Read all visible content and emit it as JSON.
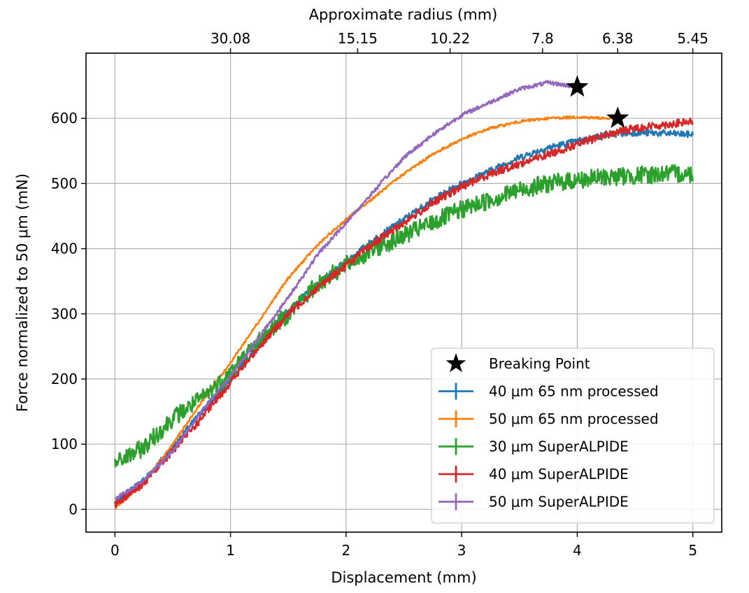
{
  "chart_data": {
    "type": "line",
    "xlabel": "Displacement (mm)",
    "ylabel": "Force normalized to 50 μm (mN)",
    "top_xlabel": "Approximate radius (mm)",
    "xlim": [
      -0.25,
      5.25
    ],
    "ylim": [
      -35,
      700
    ],
    "x_ticks": [
      0,
      1,
      2,
      3,
      4,
      5
    ],
    "y_ticks": [
      0,
      100,
      200,
      300,
      400,
      500,
      600
    ],
    "top_ticks": [
      {
        "x": 1.0,
        "label": "30.08"
      },
      {
        "x": 2.1,
        "label": "15.15"
      },
      {
        "x": 2.9,
        "label": "10.22"
      },
      {
        "x": 3.7,
        "label": "7.8"
      },
      {
        "x": 4.35,
        "label": "6.38"
      },
      {
        "x": 5.0,
        "label": "5.45"
      }
    ],
    "grid": true,
    "legend_position": "lower-right",
    "legend": {
      "breaking_point_label": "Breaking Point"
    },
    "breaking_points": [
      {
        "x": 4.0,
        "y": 648
      },
      {
        "x": 4.35,
        "y": 600
      }
    ],
    "series": [
      {
        "name": "40 μm 65 nm processed",
        "color": "#1f77b4",
        "noise": 5,
        "x": [
          0,
          0.25,
          0.5,
          0.75,
          1.0,
          1.25,
          1.5,
          1.75,
          2.0,
          2.25,
          2.5,
          2.75,
          3.0,
          3.25,
          3.5,
          3.75,
          4.0,
          4.25,
          4.5,
          4.75,
          5.0
        ],
        "y": [
          10,
          45,
          95,
          150,
          200,
          255,
          305,
          345,
          380,
          415,
          445,
          475,
          500,
          520,
          540,
          555,
          565,
          575,
          578,
          577,
          575
        ]
      },
      {
        "name": "50 μm 65 nm processed",
        "color": "#ff7f0e",
        "noise": 2,
        "x": [
          0,
          0.25,
          0.5,
          0.75,
          1.0,
          1.25,
          1.5,
          1.75,
          2.0,
          2.25,
          2.5,
          2.75,
          3.0,
          3.25,
          3.5,
          3.75,
          4.0,
          4.25,
          4.35
        ],
        "y": [
          2,
          40,
          100,
          165,
          225,
          290,
          355,
          405,
          445,
          480,
          515,
          545,
          568,
          585,
          595,
          600,
          602,
          600,
          600
        ]
      },
      {
        "name": "30 μm SuperALPIDE",
        "color": "#2ca02c",
        "noise": 14,
        "x": [
          0,
          0.25,
          0.5,
          0.75,
          1.0,
          1.25,
          1.5,
          1.75,
          2.0,
          2.25,
          2.5,
          2.75,
          3.0,
          3.25,
          3.5,
          3.75,
          4.0,
          4.25,
          4.5,
          4.75,
          5.0
        ],
        "y": [
          70,
          95,
          140,
          170,
          210,
          260,
          300,
          345,
          375,
          400,
          420,
          440,
          460,
          475,
          490,
          500,
          505,
          510,
          512,
          515,
          515
        ]
      },
      {
        "name": "40 μm SuperALPIDE",
        "color": "#d62728",
        "noise": 6,
        "x": [
          0,
          0.25,
          0.5,
          0.75,
          1.0,
          1.25,
          1.5,
          1.75,
          2.0,
          2.25,
          2.5,
          2.75,
          3.0,
          3.25,
          3.5,
          3.75,
          4.0,
          4.25,
          4.5,
          4.75,
          5.0
        ],
        "y": [
          8,
          40,
          90,
          140,
          195,
          250,
          300,
          340,
          375,
          410,
          440,
          470,
          495,
          515,
          530,
          545,
          560,
          575,
          585,
          590,
          595
        ]
      },
      {
        "name": "50 μm SuperALPIDE",
        "color": "#9467bd",
        "noise": 3,
        "x": [
          0,
          0.25,
          0.5,
          0.75,
          1.0,
          1.25,
          1.5,
          1.75,
          2.0,
          2.25,
          2.5,
          2.75,
          3.0,
          3.25,
          3.5,
          3.75,
          4.0
        ],
        "y": [
          15,
          45,
          90,
          150,
          205,
          265,
          325,
          390,
          440,
          490,
          540,
          575,
          605,
          625,
          645,
          655,
          648
        ]
      }
    ]
  }
}
